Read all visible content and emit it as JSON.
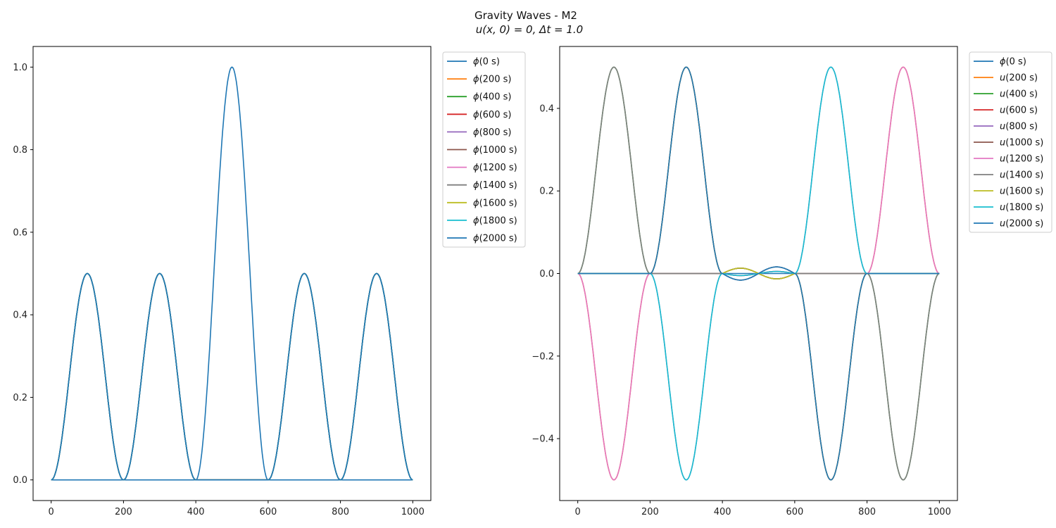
{
  "figure": {
    "title_line1": "Gravity Waves - M2",
    "title_line2": "u(x, 0) = 0, Δt = 1.0"
  },
  "colors": {
    "palette": [
      "#1f77b4",
      "#ff7f0e",
      "#2ca02c",
      "#d62728",
      "#9467bd",
      "#8c564b",
      "#e377c2",
      "#7f7f7f",
      "#bcbd22",
      "#17becf",
      "#1f77b4"
    ]
  },
  "chart_data": [
    {
      "type": "line",
      "xlim": [
        -50,
        1050
      ],
      "ylim": [
        -0.05,
        1.05
      ],
      "xticks": [
        0,
        200,
        400,
        600,
        800,
        1000
      ],
      "yticks": [
        0.0,
        0.2,
        0.4,
        0.6,
        0.8,
        1.0
      ],
      "xtick_labels": [
        "0",
        "200",
        "400",
        "600",
        "800",
        "1000"
      ],
      "ytick_labels": [
        "0.0",
        "0.2",
        "0.4",
        "0.6",
        "0.8",
        "1.0"
      ],
      "legend_position": "outside-right-top",
      "curve_model": "phi",
      "series": [
        {
          "name": "ϕ(0 s)",
          "t": 0
        },
        {
          "name": "ϕ(200 s)",
          "t": 200
        },
        {
          "name": "ϕ(400 s)",
          "t": 400
        },
        {
          "name": "ϕ(600 s)",
          "t": 600
        },
        {
          "name": "ϕ(800 s)",
          "t": 800
        },
        {
          "name": "ϕ(1000 s)",
          "t": 1000
        },
        {
          "name": "ϕ(1200 s)",
          "t": 1200
        },
        {
          "name": "ϕ(1400 s)",
          "t": 1400
        },
        {
          "name": "ϕ(1600 s)",
          "t": 1600
        },
        {
          "name": "ϕ(1800 s)",
          "t": 1800
        },
        {
          "name": "ϕ(2000 s)",
          "t": 2000
        }
      ]
    },
    {
      "type": "line",
      "xlim": [
        -50,
        1050
      ],
      "ylim": [
        -0.55,
        0.55
      ],
      "xticks": [
        0,
        200,
        400,
        600,
        800,
        1000
      ],
      "yticks": [
        -0.4,
        -0.2,
        0.0,
        0.2,
        0.4
      ],
      "xtick_labels": [
        "0",
        "200",
        "400",
        "600",
        "800",
        "1000"
      ],
      "ytick_labels": [
        "−0.4",
        "−0.2",
        "0.0",
        "0.2",
        "0.4"
      ],
      "legend_position": "outside-right-top",
      "curve_model": "u",
      "series": [
        {
          "name": "ϕ(0 s)",
          "t": 0
        },
        {
          "name": "u(200 s)",
          "t": 200
        },
        {
          "name": "u(400 s)",
          "t": 400
        },
        {
          "name": "u(600 s)",
          "t": 600
        },
        {
          "name": "u(800 s)",
          "t": 800
        },
        {
          "name": "u(1000 s)",
          "t": 1000
        },
        {
          "name": "u(1200 s)",
          "t": 1200
        },
        {
          "name": "u(1400 s)",
          "t": 1400
        },
        {
          "name": "u(1600 s)",
          "t": 1600
        },
        {
          "name": "u(1800 s)",
          "t": 1800
        },
        {
          "name": "u(2000 s)",
          "t": 2000
        }
      ]
    }
  ]
}
